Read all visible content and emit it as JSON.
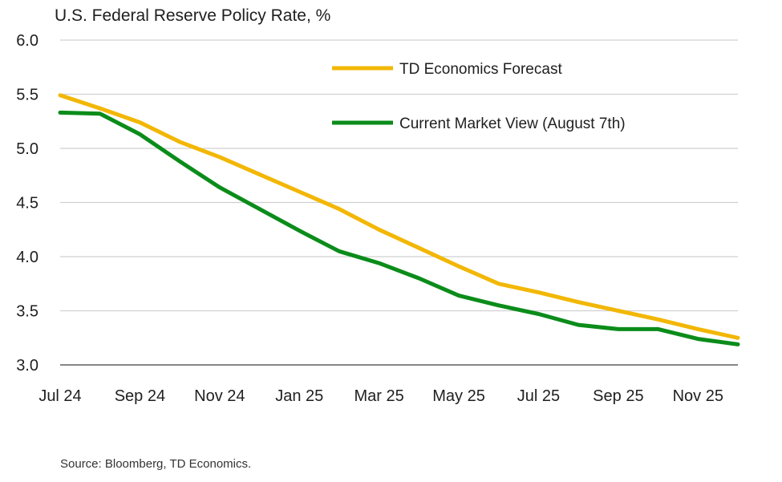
{
  "chart_data": {
    "type": "line",
    "title": "U.S. Federal Reserve Policy Rate, %",
    "xlabel": "",
    "ylabel": "",
    "ylim": [
      3.0,
      6.0
    ],
    "yticks": [
      "3.0",
      "3.5",
      "4.0",
      "4.5",
      "5.0",
      "5.5",
      "6.0"
    ],
    "xticks": [
      "Jul 24",
      "Sep 24",
      "Nov 24",
      "Jan 25",
      "Mar 25",
      "May 25",
      "Jul 25",
      "Sep 25",
      "Nov 25"
    ],
    "grid": true,
    "legend_position": "top-right",
    "x": [
      "2024-07",
      "2024-08",
      "2024-09",
      "2024-10",
      "2024-11",
      "2024-12",
      "2025-01",
      "2025-02",
      "2025-03",
      "2025-04",
      "2025-05",
      "2025-06",
      "2025-07",
      "2025-08",
      "2025-09",
      "2025-10",
      "2025-11",
      "2025-12"
    ],
    "series": [
      {
        "name": "TD Economics Forecast",
        "color": "#F2B705",
        "values": [
          5.49,
          5.37,
          5.24,
          5.06,
          4.92,
          4.76,
          4.6,
          4.44,
          4.25,
          4.08,
          3.91,
          3.75,
          3.67,
          3.58,
          3.5,
          3.42,
          3.33,
          3.25
        ]
      },
      {
        "name": "Current Market View (August 7th)",
        "color": "#0B8C1A",
        "values": [
          5.33,
          5.32,
          5.13,
          4.88,
          4.64,
          4.44,
          4.24,
          4.05,
          3.94,
          3.8,
          3.64,
          3.55,
          3.47,
          3.37,
          3.33,
          3.33,
          3.24,
          3.19
        ]
      }
    ]
  },
  "source": "Source: Bloomberg, TD Economics."
}
